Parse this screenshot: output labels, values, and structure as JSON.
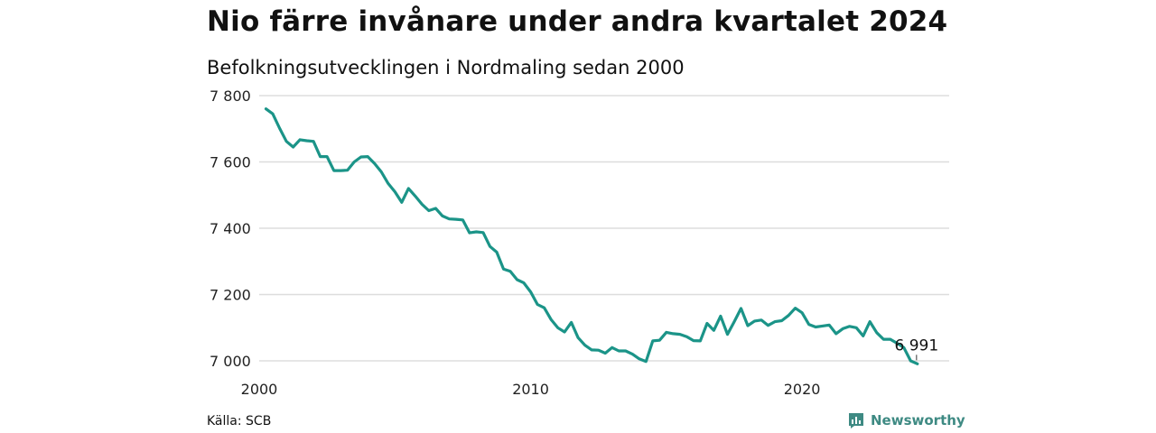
{
  "header": {
    "title": "Nio färre invånare under andra kvartalet 2024",
    "subtitle": "Befolkningsutvecklingen i Nordmaling sedan 2000"
  },
  "footer": {
    "source": "Källa: SCB",
    "brand": "Newsworthy"
  },
  "colors": {
    "line": "#1b9488",
    "grid": "#dddddd",
    "brand": "#3e8a83"
  },
  "chart_data": {
    "type": "line",
    "title": "Nio färre invånare under andra kvartalet 2024",
    "subtitle": "Befolkningsutvecklingen i Nordmaling sedan 2000",
    "xlabel": "",
    "ylabel": "",
    "x_ticks": [
      2000,
      2010,
      2020
    ],
    "y_ticks": [
      {
        "value": 7000,
        "label": "7 000"
      },
      {
        "value": 7200,
        "label": "7 200"
      },
      {
        "value": 7400,
        "label": "7 400"
      },
      {
        "value": 7600,
        "label": "7 600"
      },
      {
        "value": 7800,
        "label": "7 800"
      }
    ],
    "xlim": [
      2000,
      2025.42
    ],
    "ylim": [
      7000,
      7800
    ],
    "grid": "horizontal",
    "end_label": "6 991",
    "series": [
      {
        "x_start": 2000.25,
        "x_step": 0.25,
        "values": [
          7760,
          7745,
          7702,
          7662,
          7645,
          7667,
          7664,
          7662,
          7616,
          7616,
          7574,
          7574,
          7575,
          7600,
          7615,
          7616,
          7595,
          7570,
          7535,
          7510,
          7478,
          7520,
          7497,
          7472,
          7453,
          7460,
          7437,
          7428,
          7427,
          7425,
          7386,
          7389,
          7387,
          7345,
          7328,
          7277,
          7270,
          7245,
          7235,
          7208,
          7170,
          7160,
          7125,
          7100,
          7087,
          7116,
          7070,
          7047,
          7033,
          7032,
          7023,
          7040,
          7030,
          7030,
          7020,
          7006,
          6998,
          7060,
          7062,
          7086,
          7082,
          7080,
          7073,
          7061,
          7060,
          7113,
          7092,
          7135,
          7080,
          7118,
          7158,
          7106,
          7120,
          7123,
          7107,
          7118,
          7121,
          7137,
          7159,
          7145,
          7110,
          7102,
          7105,
          7108,
          7082,
          7097,
          7104,
          7100,
          7075,
          7118,
          7085,
          7065,
          7065,
          7053,
          7040,
          7000,
          6991
        ]
      }
    ]
  }
}
